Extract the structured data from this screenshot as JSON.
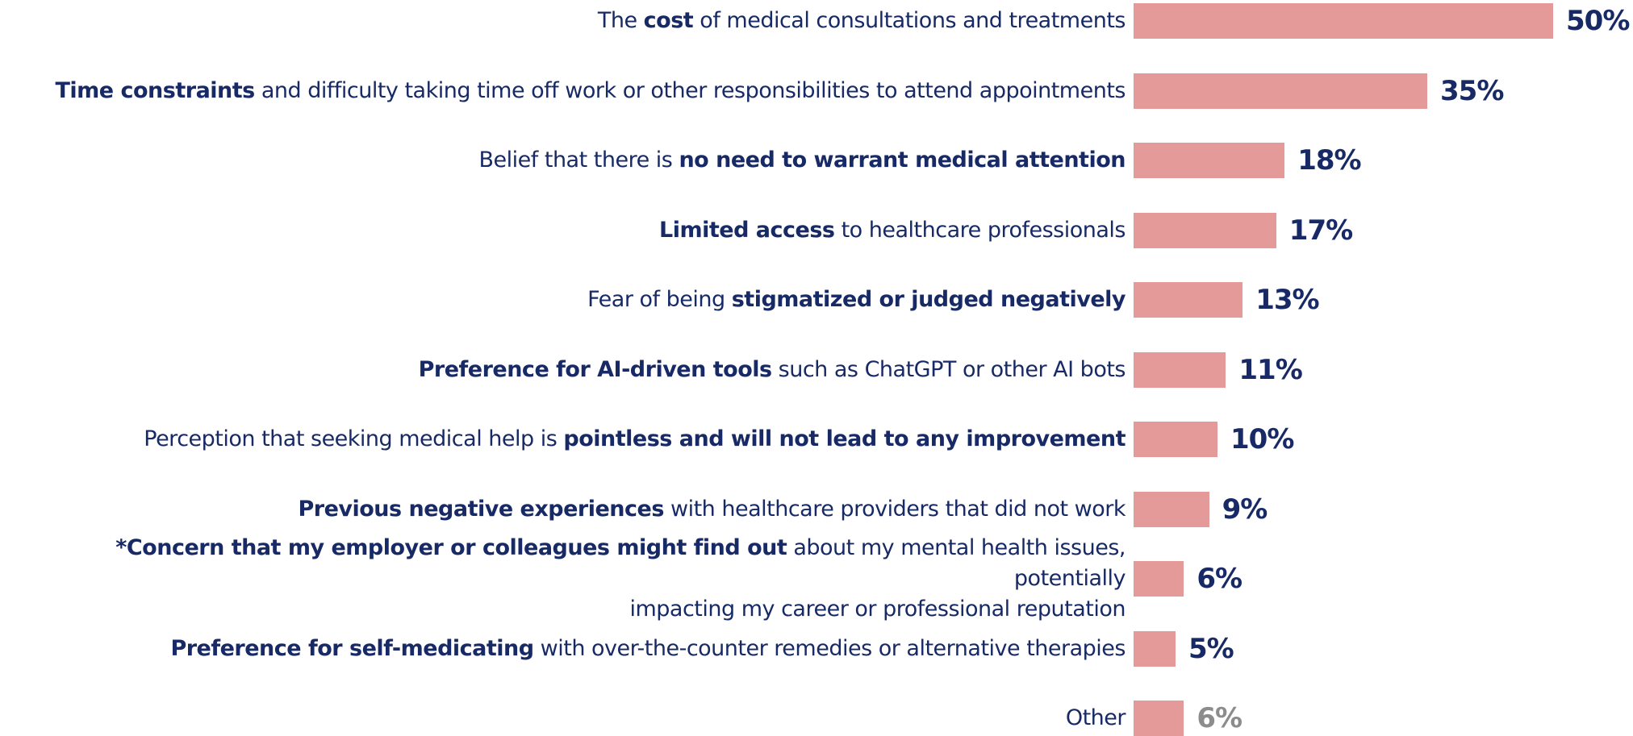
{
  "chart_data": {
    "type": "bar",
    "orientation": "horizontal",
    "categories": [
      [
        {
          "text": "The ",
          "bold": false
        },
        {
          "text": "cost",
          "bold": true
        },
        {
          "text": " of medical consultations and treatments",
          "bold": false
        }
      ],
      [
        {
          "text": "Time constraints",
          "bold": true
        },
        {
          "text": " and difficulty taking time off work or other responsibilities to attend appointments",
          "bold": false
        }
      ],
      [
        {
          "text": "Belief that there is ",
          "bold": false
        },
        {
          "text": "no need to warrant medical attention",
          "bold": true
        }
      ],
      [
        {
          "text": "Limited access",
          "bold": true
        },
        {
          "text": " to healthcare professionals",
          "bold": false
        }
      ],
      [
        {
          "text": "Fear of being ",
          "bold": false
        },
        {
          "text": "stigmatized or judged negatively",
          "bold": true
        }
      ],
      [
        {
          "text": "Preference for AI-driven tools",
          "bold": true
        },
        {
          "text": " such as ChatGPT or other AI bots",
          "bold": false
        }
      ],
      [
        {
          "text": "Perception that seeking medical help is ",
          "bold": false
        },
        {
          "text": "pointless and will not lead to any improvement",
          "bold": true
        }
      ],
      [
        {
          "text": "Previous negative experiences",
          "bold": true
        },
        {
          "text": " with healthcare providers that did not work",
          "bold": false
        }
      ],
      [
        {
          "text": "*Concern that my employer or colleagues might find out",
          "bold": true
        },
        {
          "text": " about my mental health issues, potentially\nimpacting my career or professional reputation",
          "bold": false
        }
      ],
      [
        {
          "text": "Preference for self-medicating",
          "bold": true
        },
        {
          "text": " with over-the-counter remedies or alternative therapies",
          "bold": false
        }
      ],
      [
        {
          "text": "Other",
          "bold": false
        }
      ]
    ],
    "values": [
      50,
      35,
      18,
      17,
      13,
      11,
      10,
      9,
      6,
      5,
      6
    ],
    "value_labels": [
      "50%",
      "35%",
      "18%",
      "17%",
      "13%",
      "11%",
      "10%",
      "9%",
      "6%",
      "5%",
      "6%"
    ],
    "value_label_colors": [
      "#172a66",
      "#172a66",
      "#172a66",
      "#172a66",
      "#172a66",
      "#172a66",
      "#172a66",
      "#172a66",
      "#172a66",
      "#172a66",
      "#8c8c8c"
    ],
    "color": "#e59a9a",
    "xlim": [
      0,
      50
    ]
  }
}
